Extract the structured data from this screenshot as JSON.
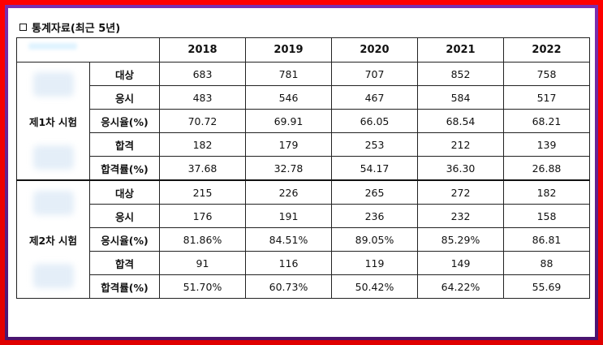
{
  "heading": "통계자료(최근 5년)",
  "years": [
    "2018",
    "2019",
    "2020",
    "2021",
    "2022"
  ],
  "groups": [
    {
      "name": "제1차 시험",
      "rows": [
        {
          "label": "대상",
          "values": [
            "683",
            "781",
            "707",
            "852",
            "758"
          ]
        },
        {
          "label": "응시",
          "values": [
            "483",
            "546",
            "467",
            "584",
            "517"
          ]
        },
        {
          "label": "응시율(%)",
          "values": [
            "70.72",
            "69.91",
            "66.05",
            "68.54",
            "68.21"
          ]
        },
        {
          "label": "합격",
          "values": [
            "182",
            "179",
            "253",
            "212",
            "139"
          ]
        },
        {
          "label": "합격률(%)",
          "values": [
            "37.68",
            "32.78",
            "54.17",
            "36.30",
            "26.88"
          ]
        }
      ]
    },
    {
      "name": "제2차 시험",
      "rows": [
        {
          "label": "대상",
          "values": [
            "215",
            "226",
            "265",
            "272",
            "182"
          ]
        },
        {
          "label": "응시",
          "values": [
            "176",
            "191",
            "236",
            "232",
            "158"
          ]
        },
        {
          "label": "응시율(%)",
          "values": [
            "81.86%",
            "84.51%",
            "89.05%",
            "85.29%",
            "86.81"
          ]
        },
        {
          "label": "합격",
          "values": [
            "91",
            "116",
            "119",
            "149",
            "88"
          ]
        },
        {
          "label": "합격률(%)",
          "values": [
            "51.70%",
            "60.73%",
            "50.42%",
            "64.22%",
            "55.69"
          ]
        }
      ]
    }
  ],
  "colors": {
    "frame": "#ff0000",
    "frame_inner": "#7b2fb0",
    "panel": "#ffffff",
    "border": "#222222"
  }
}
